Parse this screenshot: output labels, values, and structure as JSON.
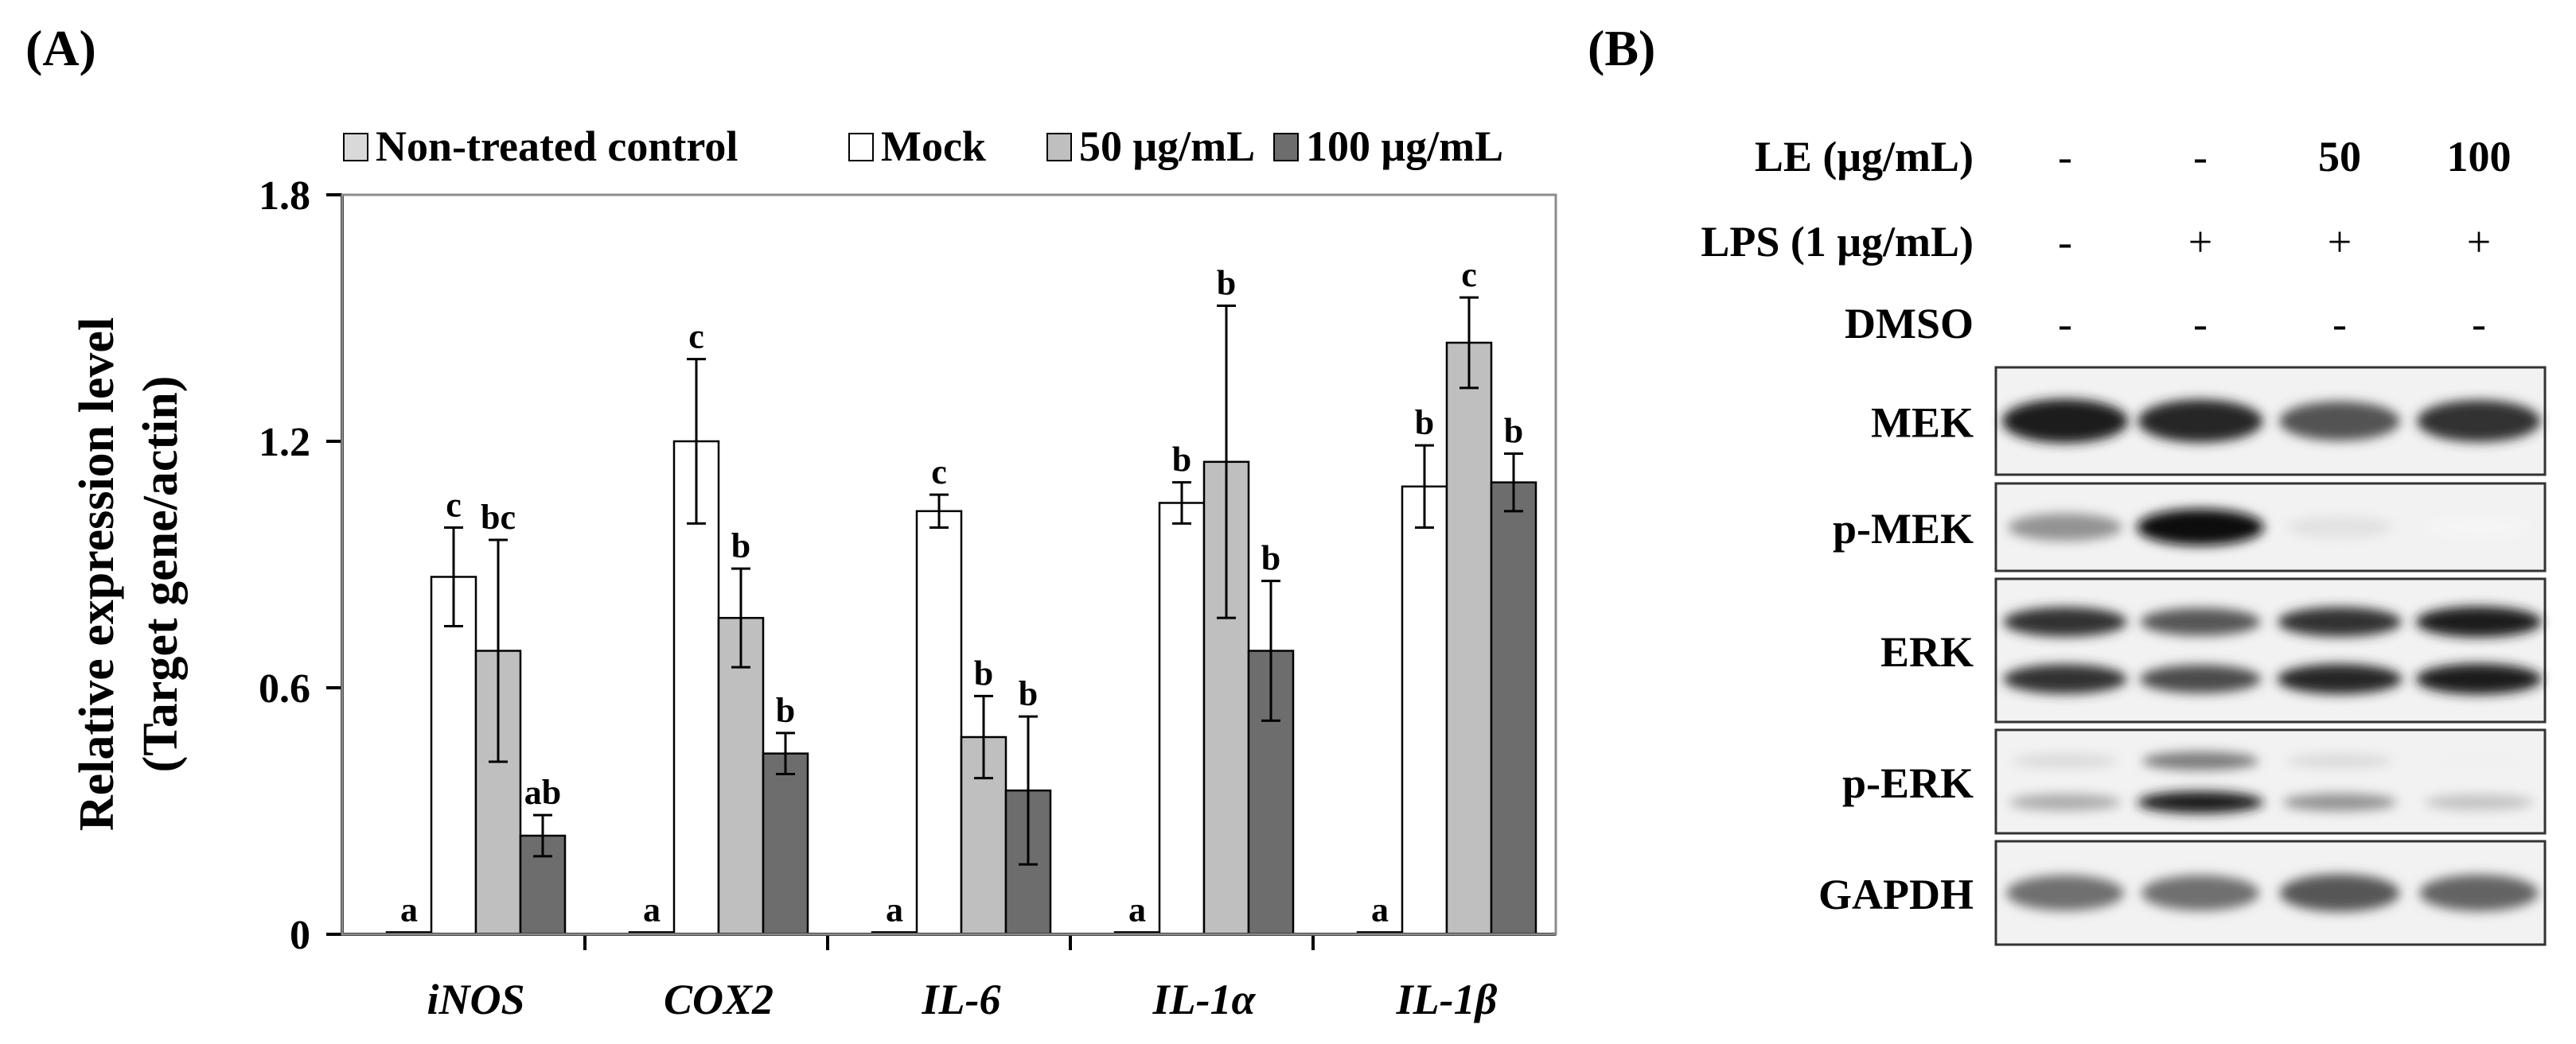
{
  "panel_a_label": "(A)",
  "panel_b_label": "(B)",
  "chart_data": {
    "type": "bar",
    "title": "",
    "xlabel": "",
    "ylabel": "Relative expression level",
    "ylabel_line2": "(Target gene/actin)",
    "ylim": [
      0,
      1.8
    ],
    "yticks": [
      "0",
      "0.6",
      "1.2",
      "1.8"
    ],
    "ytick_values": [
      0,
      0.6,
      1.2,
      1.8
    ],
    "grid": false,
    "legend_position": "top",
    "categories": [
      "iNOS",
      "COX2",
      "IL-6",
      "IL-1α",
      "IL-1β"
    ],
    "series": [
      {
        "name": "Non-treated control",
        "color": "#d9d9d9",
        "values": [
          0.005,
          0.005,
          0.005,
          0.005,
          0.005
        ],
        "errors": [
          0,
          0,
          0,
          0,
          0
        ],
        "letters": [
          "a",
          "a",
          "a",
          "a",
          "a"
        ]
      },
      {
        "name": "Mock",
        "color": "#ffffff",
        "values": [
          0.87,
          1.2,
          1.03,
          1.05,
          1.09
        ],
        "errors": [
          0.12,
          0.2,
          0.04,
          0.05,
          0.1
        ],
        "letters": [
          "c",
          "c",
          "c",
          "b",
          "b"
        ]
      },
      {
        "name": "50 μg/mL",
        "color": "#bfbfbf",
        "values": [
          0.69,
          0.77,
          0.48,
          1.15,
          1.44
        ],
        "errors": [
          0.27,
          0.12,
          0.1,
          0.38,
          0.11
        ],
        "letters": [
          "bc",
          "b",
          "b",
          "b",
          "c"
        ]
      },
      {
        "name": "100 μg/mL",
        "color": "#6d6d6d",
        "values": [
          0.24,
          0.44,
          0.35,
          0.69,
          1.1
        ],
        "errors": [
          0.05,
          0.05,
          0.18,
          0.17,
          0.07
        ],
        "letters": [
          "ab",
          "b",
          "b",
          "b",
          "b"
        ]
      }
    ]
  },
  "western_blot": {
    "treatments": [
      {
        "label": "LE (μg/mL)",
        "values": [
          "-",
          "-",
          "50",
          "100"
        ]
      },
      {
        "label": "LPS (1 μg/mL)",
        "values": [
          "-",
          "+",
          "+",
          "+"
        ]
      },
      {
        "label": "DMSO",
        "values": [
          "-",
          "-",
          "-",
          "-"
        ]
      }
    ],
    "blots": [
      {
        "label": "MEK",
        "bands": [
          [
            0.95
          ],
          [
            0.9
          ],
          [
            0.72
          ],
          [
            0.85
          ]
        ]
      },
      {
        "label": "p-MEK",
        "bands": [
          [
            0.45
          ],
          [
            1.0
          ],
          [
            0.12
          ],
          [
            0.04
          ]
        ]
      },
      {
        "label": "ERK",
        "bands": [
          [
            0.85,
            0.85
          ],
          [
            0.7,
            0.75
          ],
          [
            0.85,
            0.9
          ],
          [
            0.95,
            0.95
          ]
        ]
      },
      {
        "label": "p-ERK",
        "bands": [
          [
            0.15,
            0.35
          ],
          [
            0.55,
            0.95
          ],
          [
            0.15,
            0.45
          ],
          [
            0.06,
            0.25
          ]
        ]
      },
      {
        "label": "GAPDH",
        "bands": [
          [
            0.6
          ],
          [
            0.6
          ],
          [
            0.7
          ],
          [
            0.65
          ]
        ]
      }
    ]
  }
}
